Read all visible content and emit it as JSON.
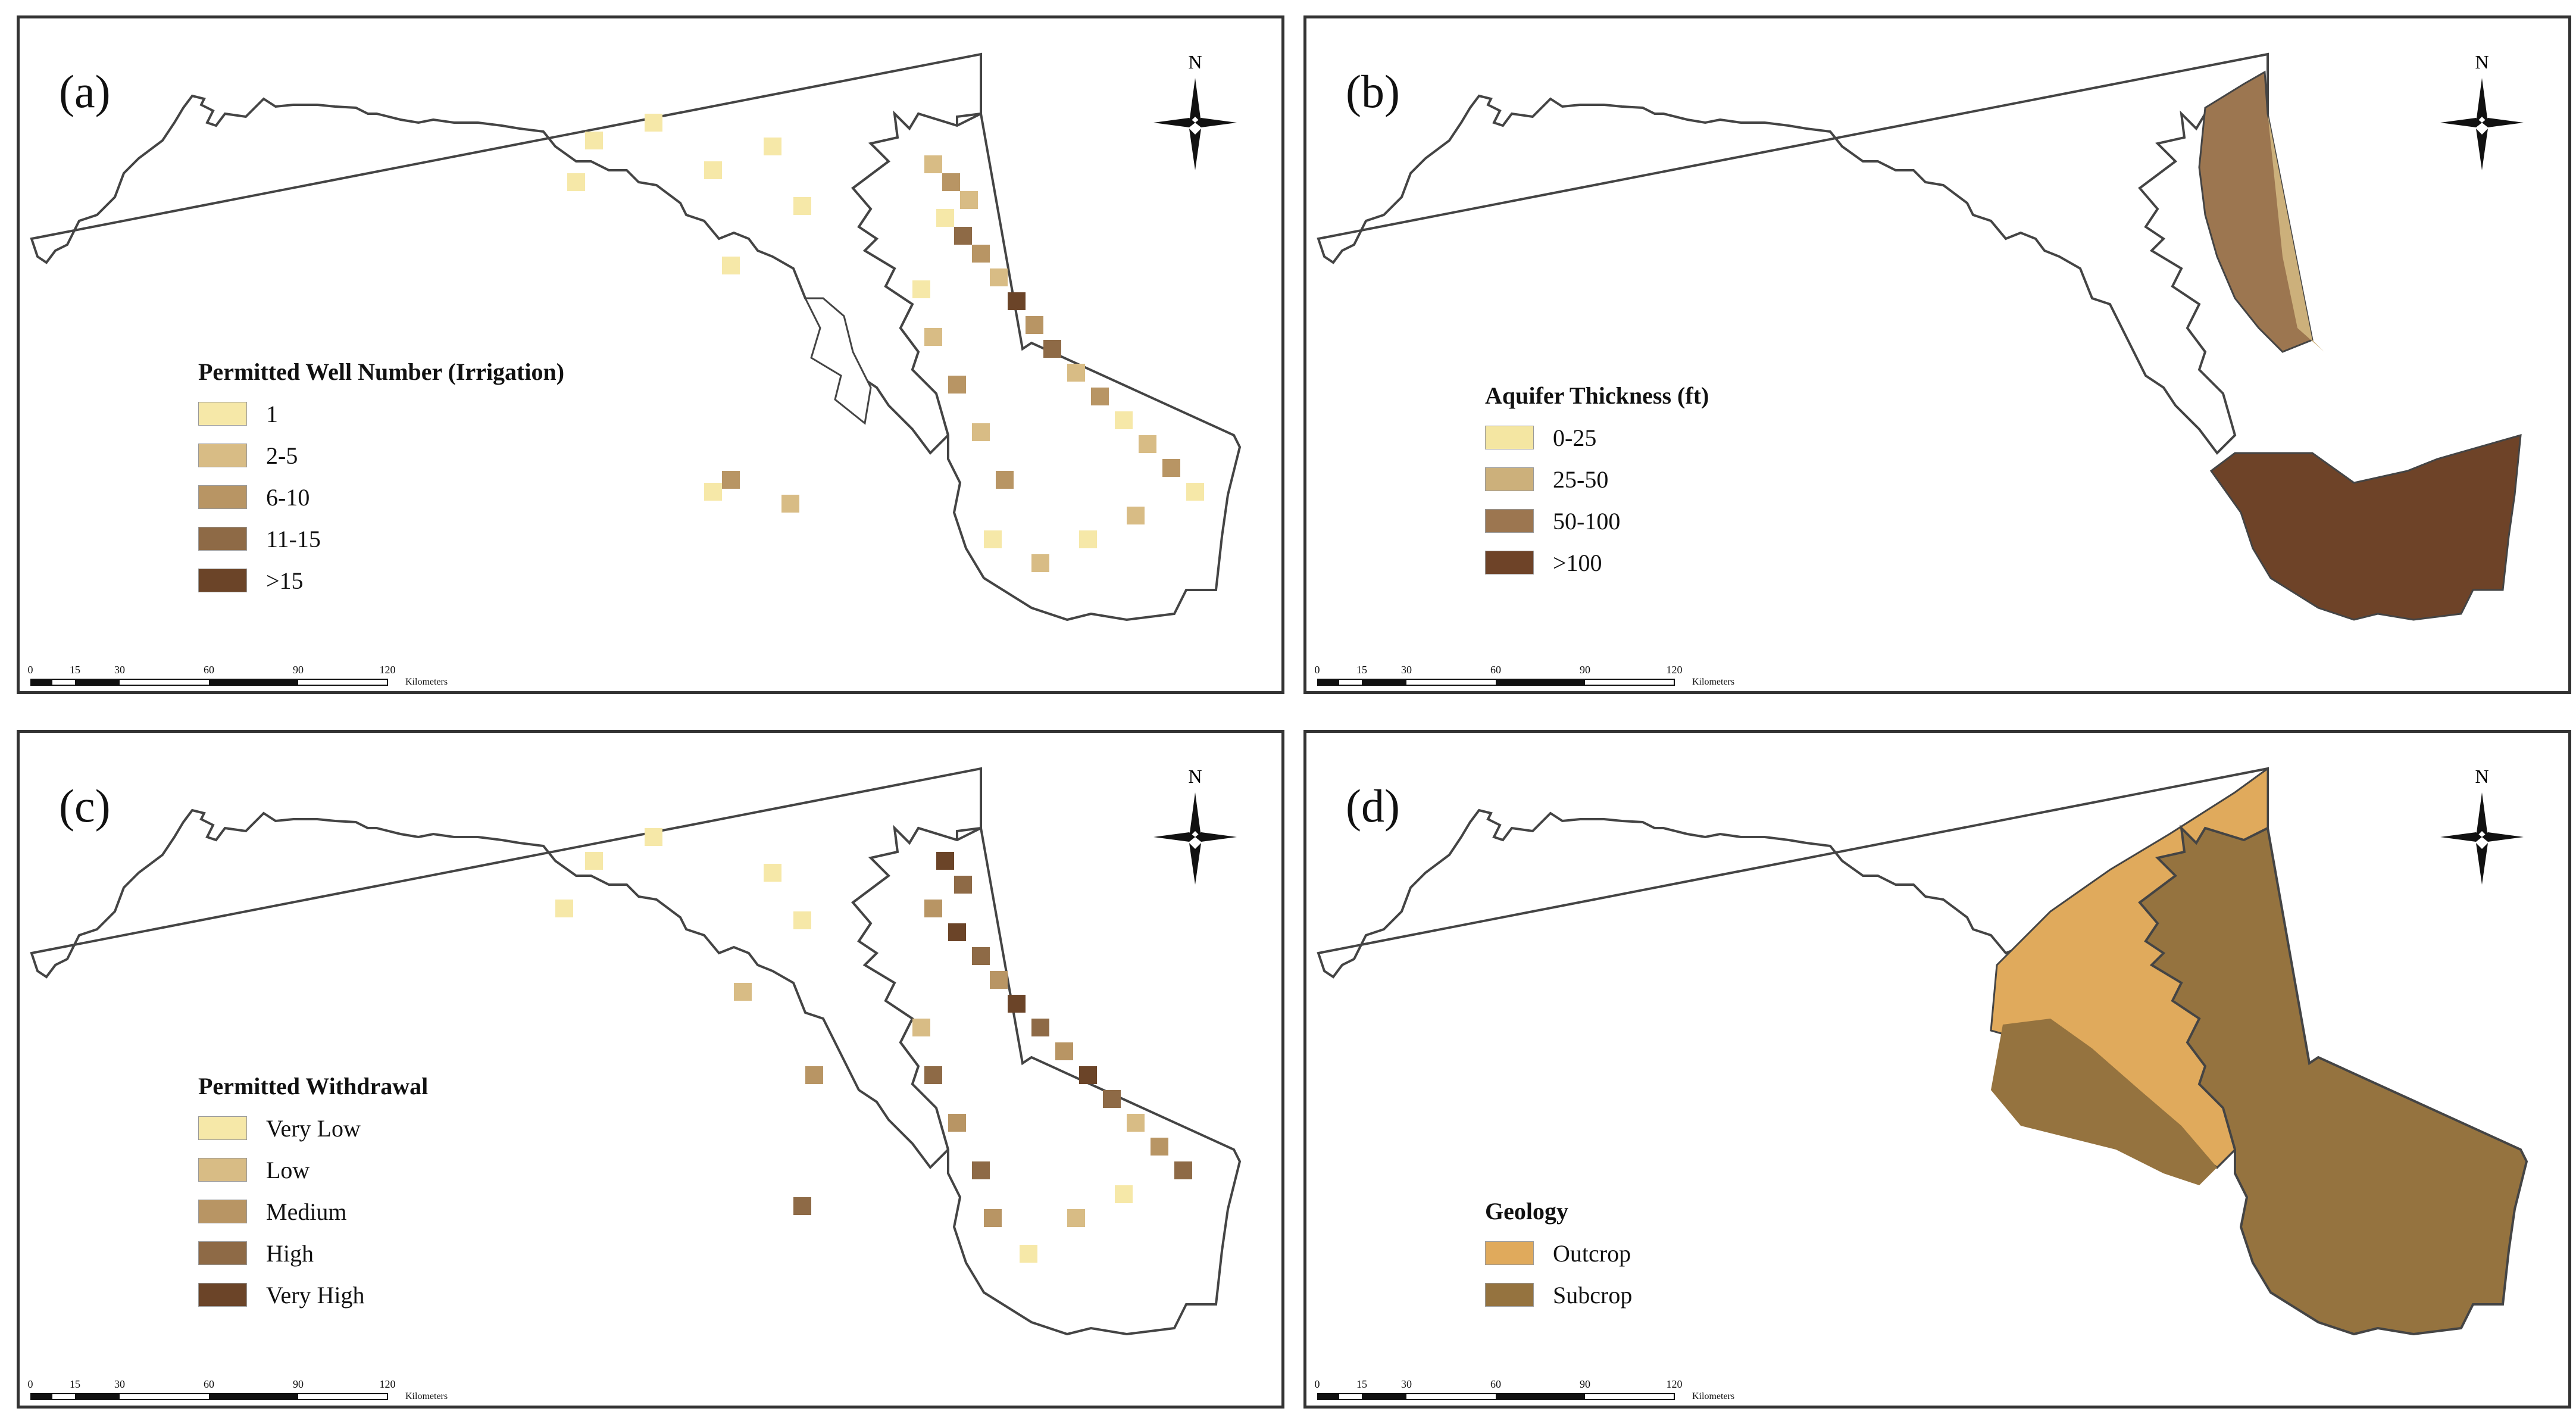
{
  "panels": [
    {
      "label": "(a)",
      "legend_title": "Permitted Well Number (Irrigation)",
      "legend": [
        {
          "label": "1",
          "color": "#f6e8a8"
        },
        {
          "label": "2-5",
          "color": "#d8bc85"
        },
        {
          "label": "6-10",
          "color": "#b89564"
        },
        {
          "label": "11-15",
          "color": "#8e6a46"
        },
        {
          "label": ">15",
          "color": "#6b4428"
        }
      ]
    },
    {
      "label": "(b)",
      "legend_title": "Aquifer Thickness (ft)",
      "legend": [
        {
          "label": "0-25",
          "color": "#f4e6a2"
        },
        {
          "label": "25-50",
          "color": "#ccb07b"
        },
        {
          "label": "50-100",
          "color": "#9c7650"
        },
        {
          "label": ">100",
          "color": "#6e4328"
        }
      ]
    },
    {
      "label": "(c)",
      "legend_title": "Permitted Withdrawal",
      "legend": [
        {
          "label": "Very Low",
          "color": "#f6e8a8"
        },
        {
          "label": "Low",
          "color": "#d8bc85"
        },
        {
          "label": "Medium",
          "color": "#b89564"
        },
        {
          "label": "High",
          "color": "#8e6a46"
        },
        {
          "label": "Very High",
          "color": "#6b4428"
        }
      ]
    },
    {
      "label": "(d)",
      "legend_title": "Geology",
      "legend": [
        {
          "label": "Outcrop",
          "color": "#e0aa5c"
        },
        {
          "label": "Subcrop",
          "color": "#95733f"
        }
      ]
    }
  ],
  "north_arrow_label": "N",
  "scale_bar": {
    "ticks": [
      "0",
      "15",
      "30",
      "60",
      "90",
      "120"
    ],
    "unit": "Kilometers"
  }
}
